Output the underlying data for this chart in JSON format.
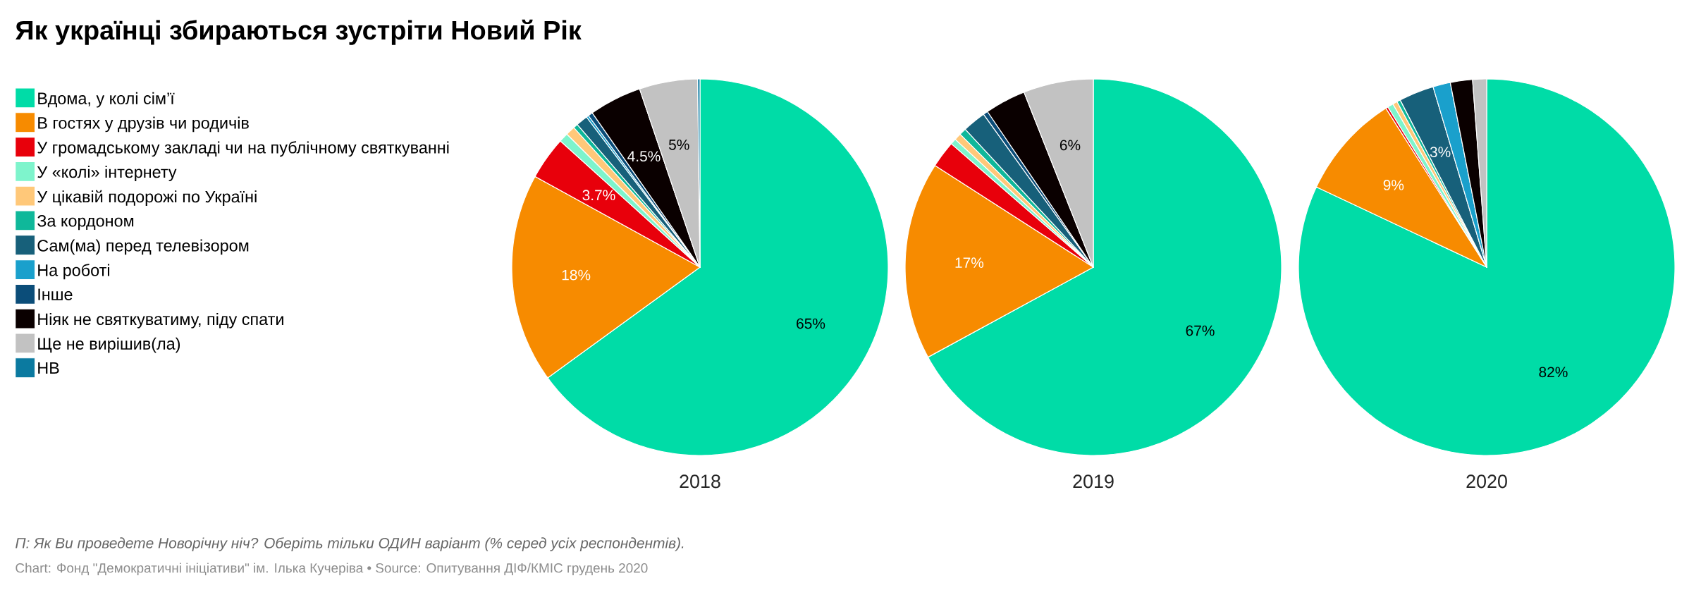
{
  "chart_data": [
    {
      "type": "pie",
      "title": "Як українці збираються зустріти Новий Рік",
      "xlabel": "2018",
      "legend": "left",
      "annotations": [
        "П: Як Ви проведете Новорічну ніч? Оберіть тільки ОДИН варіант (% серед усіх респондентів).",
        "Chart: Фонд \"Демократичні ініціативи\" ім. Ілька Кучеріва • Source: Опитування ДІФ/КМІС грудень 2020"
      ],
      "categories": [
        "Вдома, у колі сім’ї",
        "В гостях у друзів чи родичів",
        "У громадському закладі чи на публічному святкуванні",
        "У «колі» інтернету",
        "У цікавій подорожі по Україні",
        "За кордоном",
        "Сам(ма) перед телевізором",
        "На роботі",
        "Інше",
        "Ніяк не святкуватиму, піду спати",
        "Ще не вирішив(ла)",
        "НВ"
      ],
      "values": [
        65,
        18,
        3.7,
        0.8,
        0.8,
        0.4,
        1.0,
        0.2,
        0.4,
        4.5,
        5,
        0.2
      ],
      "colors": [
        "#00dca7",
        "#f78b00",
        "#e8000b",
        "#7ef4cc",
        "#ffc879",
        "#0fb89a",
        "#17607a",
        "#1aa0cc",
        "#0b4d79",
        "#0a0000",
        "#c2c2c2",
        "#0b7aa0"
      ],
      "value_labels": [
        "65%",
        "18%",
        "3.7%",
        null,
        null,
        null,
        null,
        null,
        null,
        "4.5%",
        "5%",
        null
      ]
    },
    {
      "type": "pie",
      "xlabel": "2019",
      "categories": [
        null,
        null,
        null,
        null,
        null,
        null,
        null,
        null,
        null,
        null,
        null,
        null
      ],
      "values": [
        67,
        17,
        2.3,
        0.5,
        0.6,
        0.6,
        2.0,
        null,
        0.4,
        3.5,
        6,
        0
      ],
      "colors": [
        "#00dca7",
        "#f78b00",
        "#e8000b",
        "#7ef4cc",
        "#ffc879",
        "#0fb89a",
        "#17607a",
        "#1aa0cc",
        "#0b4d79",
        "#0a0000",
        "#c2c2c2",
        "#0b7aa0"
      ],
      "value_labels": [
        "67%",
        "17%",
        null,
        null,
        null,
        null,
        null,
        null,
        null,
        null,
        "6%",
        null
      ]
    },
    {
      "type": "pie",
      "xlabel": "2020",
      "categories": [
        null,
        null,
        null,
        null,
        null,
        null,
        null,
        null,
        null,
        null,
        null,
        null
      ],
      "values": [
        82,
        9,
        0.2,
        0.5,
        0.4,
        0.3,
        3,
        1.5,
        0,
        1.9,
        1.2,
        0
      ],
      "colors": [
        "#00dca7",
        "#f78b00",
        "#e8000b",
        "#7ef4cc",
        "#ffc879",
        "#0fb89a",
        "#17607a",
        "#1aa0cc",
        "#0b4d79",
        "#0a0000",
        "#c2c2c2",
        "#0b7aa0"
      ],
      "value_labels": [
        "82%",
        "9%",
        null,
        null,
        null,
        null,
        "3%",
        null,
        null,
        null,
        null,
        null
      ]
    }
  ]
}
